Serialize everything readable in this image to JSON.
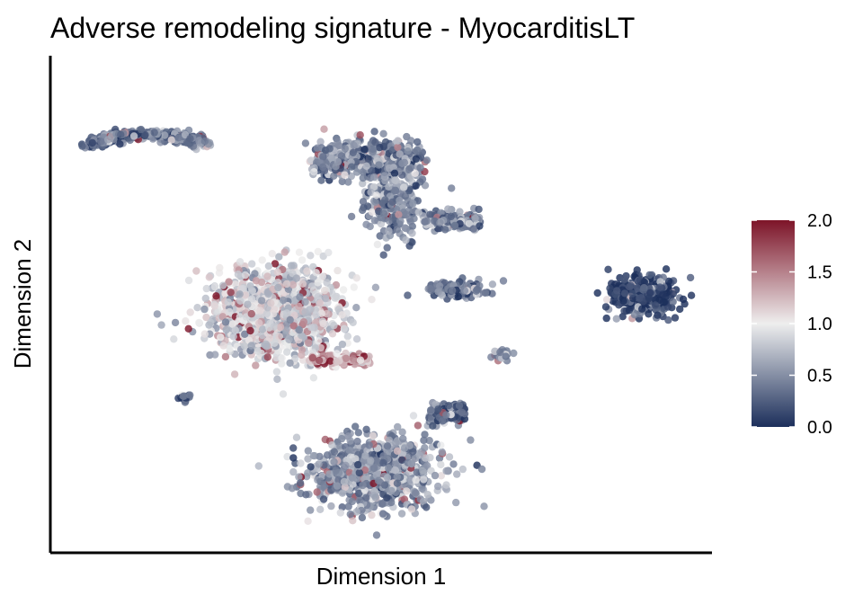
{
  "chart_data": {
    "type": "scatter",
    "title": "Adverse remodeling signature - MyocarditisLT",
    "xlabel": "Dimension 1",
    "ylabel": "Dimension 2",
    "x_ticks_shown": false,
    "y_ticks_shown": false,
    "grid": false,
    "xlim": [
      0,
      100
    ],
    "ylim": [
      0,
      100
    ],
    "color_scale": {
      "min": 0.0,
      "max": 2.0,
      "ticks": [
        "0.0",
        "0.5",
        "1.0",
        "1.5",
        "2.0"
      ],
      "colors": [
        "#1c2f5b",
        "#eeeeee",
        "#7d1428"
      ],
      "legend_position": "right"
    },
    "point_color_mode": "low-dominant with scattered high values",
    "clusters": [
      {
        "name": "upper-left arc",
        "cx": 14,
        "cy": 82,
        "rx": 10,
        "ry": 5,
        "count": 380,
        "mean": 0.35
      },
      {
        "name": "upper-center branch",
        "cx": 52,
        "cy": 74,
        "rx": 14,
        "ry": 12,
        "count": 850,
        "mean": 0.45
      },
      {
        "name": "middle-left cluster",
        "cx": 34,
        "cy": 48,
        "rx": 10,
        "ry": 9,
        "count": 1400,
        "mean": 0.85
      },
      {
        "name": "center small cluster",
        "cx": 62,
        "cy": 53,
        "rx": 5,
        "ry": 2,
        "count": 120,
        "mean": 0.35
      },
      {
        "name": "right dense cluster",
        "cx": 91,
        "cy": 52,
        "rx": 5,
        "ry": 4,
        "count": 420,
        "mean": 0.12
      },
      {
        "name": "small right-center cluster",
        "cx": 69,
        "cy": 39,
        "rx": 1.5,
        "ry": 1.0,
        "count": 45,
        "mean": 0.6
      },
      {
        "name": "small left cluster",
        "cx": 20,
        "cy": 30,
        "rx": 1.0,
        "ry": 1.0,
        "count": 20,
        "mean": 0.2
      },
      {
        "name": "bottom cluster",
        "cx": 49,
        "cy": 14,
        "rx": 10,
        "ry": 8,
        "count": 900,
        "mean": 0.55
      },
      {
        "name": "bottom branch",
        "cx": 61,
        "cy": 27,
        "rx": 4,
        "ry": 3,
        "count": 150,
        "mean": 0.35
      },
      {
        "name": "center bridge",
        "cx": 44,
        "cy": 39,
        "rx": 6,
        "ry": 3,
        "count": 130,
        "mean": 1.25
      }
    ]
  }
}
